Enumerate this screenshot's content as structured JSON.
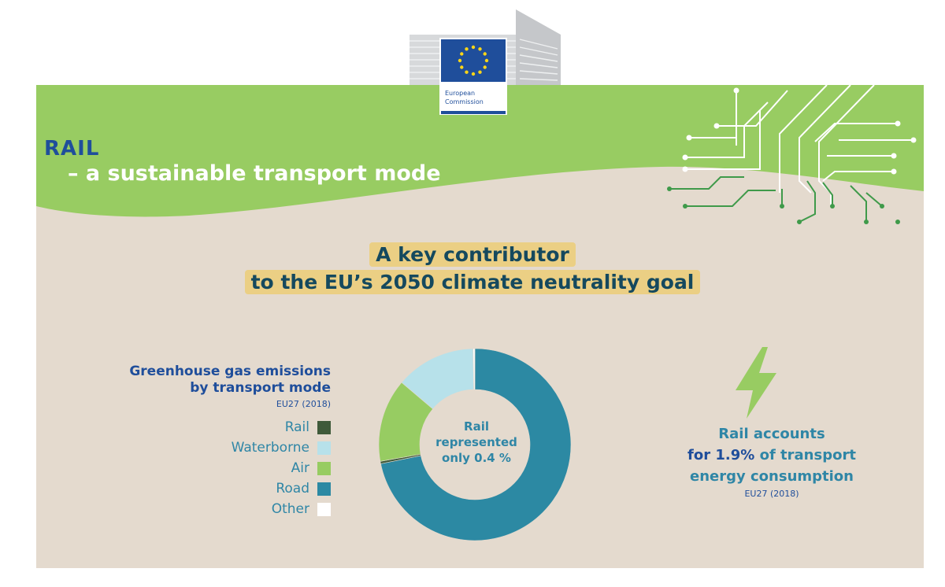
{
  "logo": {
    "line1": "European",
    "line2": "Commission"
  },
  "banner": {
    "title": "RAIL",
    "subtitle": "– a sustainable transport mode"
  },
  "headline": {
    "line1": "A key contributor",
    "line2": "to the EU’s 2050 climate neutrality goal"
  },
  "emissions": {
    "title_line1": "Greenhouse gas emissions",
    "title_line2": "by transport mode",
    "source": "EU27 (2018)",
    "center_line1": "Rail",
    "center_line2": "represented",
    "center_line3": "only 0.4 %"
  },
  "chart_data": {
    "type": "pie",
    "donut": true,
    "categories": [
      "Rail",
      "Waterborne",
      "Air",
      "Road",
      "Other"
    ],
    "values": [
      0.4,
      13.5,
      14.0,
      71.8,
      0.3
    ],
    "colors": [
      "#3f5a3a",
      "#b7e1ea",
      "#97cc62",
      "#2c89a3",
      "#ffffff"
    ],
    "legend_position": "left"
  },
  "energy": {
    "line1": "Rail accounts",
    "line2_pre": "for ",
    "line2_value": "1.9%",
    "line2_post": " of transport",
    "line3": "energy consumption",
    "source": "EU27 (2018)",
    "icon": "lightning-bolt-icon"
  },
  "colors": {
    "green_band": "#98cc62",
    "beige_bg": "#e4dace",
    "eu_blue": "#1f4e9b",
    "teal": "#2f86a6",
    "highlight": "#ebcf84"
  }
}
